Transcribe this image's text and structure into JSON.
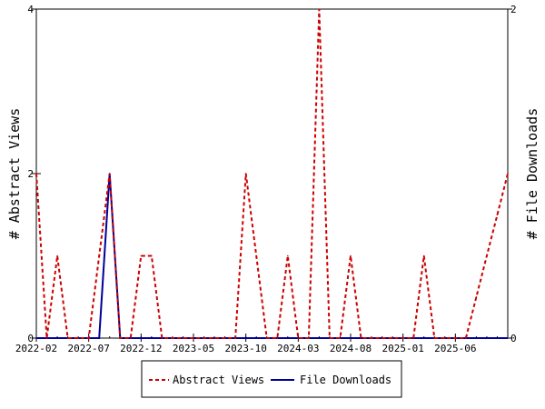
{
  "chart_data": {
    "type": "line",
    "title": "",
    "xlabel": "",
    "ylabel": "# Abstract Views",
    "y2label": "# File Downloads",
    "x_tick_labels": [
      "2022-02",
      "2022-07",
      "2022-12",
      "2023-05",
      "2023-10",
      "2024-03",
      "2024-08",
      "2025-01",
      "2025-06"
    ],
    "y_ticks": [
      "0",
      "2",
      "4"
    ],
    "y2_ticks": [
      "0",
      "2"
    ],
    "ylim": [
      0,
      4
    ],
    "y2lim": [
      0,
      2
    ],
    "x_month_range": [
      "2022-02",
      "2025-11"
    ],
    "legend_position": "bottom",
    "grid": false,
    "series": [
      {
        "name": "Abstract Views",
        "axis": "left",
        "color": "#cc0000",
        "style": "dashed",
        "points": [
          [
            "2022-02",
            2
          ],
          [
            "2022-03",
            0
          ],
          [
            "2022-04",
            1
          ],
          [
            "2022-05",
            0
          ],
          [
            "2022-06",
            0
          ],
          [
            "2022-07",
            0
          ],
          [
            "2022-08",
            1
          ],
          [
            "2022-09",
            2
          ],
          [
            "2022-10",
            0
          ],
          [
            "2022-11",
            0
          ],
          [
            "2022-12",
            1
          ],
          [
            "2023-01",
            1
          ],
          [
            "2023-02",
            0
          ],
          [
            "2023-03",
            0
          ],
          [
            "2023-04",
            0
          ],
          [
            "2023-05",
            0
          ],
          [
            "2023-06",
            0
          ],
          [
            "2023-07",
            0
          ],
          [
            "2023-08",
            0
          ],
          [
            "2023-09",
            0
          ],
          [
            "2023-10",
            2
          ],
          [
            "2023-11",
            1
          ],
          [
            "2023-12",
            0
          ],
          [
            "2024-01",
            0
          ],
          [
            "2024-02",
            1
          ],
          [
            "2024-03",
            0
          ],
          [
            "2024-04",
            0
          ],
          [
            "2024-05",
            4
          ],
          [
            "2024-06",
            0
          ],
          [
            "2024-07",
            0
          ],
          [
            "2024-08",
            1
          ],
          [
            "2024-09",
            0
          ],
          [
            "2024-10",
            0
          ],
          [
            "2024-11",
            0
          ],
          [
            "2024-12",
            0
          ],
          [
            "2025-01",
            0
          ],
          [
            "2025-02",
            0
          ],
          [
            "2025-03",
            1
          ],
          [
            "2025-04",
            0
          ],
          [
            "2025-05",
            0
          ],
          [
            "2025-06",
            0
          ],
          [
            "2025-07",
            0
          ],
          [
            "2025-08",
            0.5
          ],
          [
            "2025-09",
            1
          ],
          [
            "2025-10",
            1.5
          ],
          [
            "2025-11",
            2
          ]
        ]
      },
      {
        "name": "File Downloads",
        "axis": "right",
        "color": "#000099",
        "style": "solid",
        "points": [
          [
            "2022-02",
            0
          ],
          [
            "2022-03",
            0
          ],
          [
            "2022-04",
            0
          ],
          [
            "2022-05",
            0
          ],
          [
            "2022-06",
            0
          ],
          [
            "2022-07",
            0
          ],
          [
            "2022-08",
            0
          ],
          [
            "2022-09",
            1
          ],
          [
            "2022-10",
            0
          ],
          [
            "2022-11",
            0
          ],
          [
            "2022-12",
            0
          ],
          [
            "2023-01",
            0
          ],
          [
            "2023-02",
            0
          ],
          [
            "2023-03",
            0
          ],
          [
            "2023-04",
            0
          ],
          [
            "2023-05",
            0
          ],
          [
            "2023-06",
            0
          ],
          [
            "2023-07",
            0
          ],
          [
            "2023-08",
            0
          ],
          [
            "2023-09",
            0
          ],
          [
            "2023-10",
            0
          ],
          [
            "2023-11",
            0
          ],
          [
            "2023-12",
            0
          ],
          [
            "2024-01",
            0
          ],
          [
            "2024-02",
            0
          ],
          [
            "2024-03",
            0
          ],
          [
            "2024-04",
            0
          ],
          [
            "2024-05",
            0
          ],
          [
            "2024-06",
            0
          ],
          [
            "2024-07",
            0
          ],
          [
            "2024-08",
            0
          ],
          [
            "2024-09",
            0
          ],
          [
            "2024-10",
            0
          ],
          [
            "2024-11",
            0
          ],
          [
            "2024-12",
            0
          ],
          [
            "2025-01",
            0
          ],
          [
            "2025-02",
            0
          ],
          [
            "2025-03",
            0
          ],
          [
            "2025-04",
            0
          ],
          [
            "2025-05",
            0
          ],
          [
            "2025-06",
            0
          ],
          [
            "2025-07",
            0
          ],
          [
            "2025-08",
            0
          ],
          [
            "2025-09",
            0
          ],
          [
            "2025-10",
            0
          ],
          [
            "2025-11",
            0
          ]
        ]
      }
    ]
  }
}
